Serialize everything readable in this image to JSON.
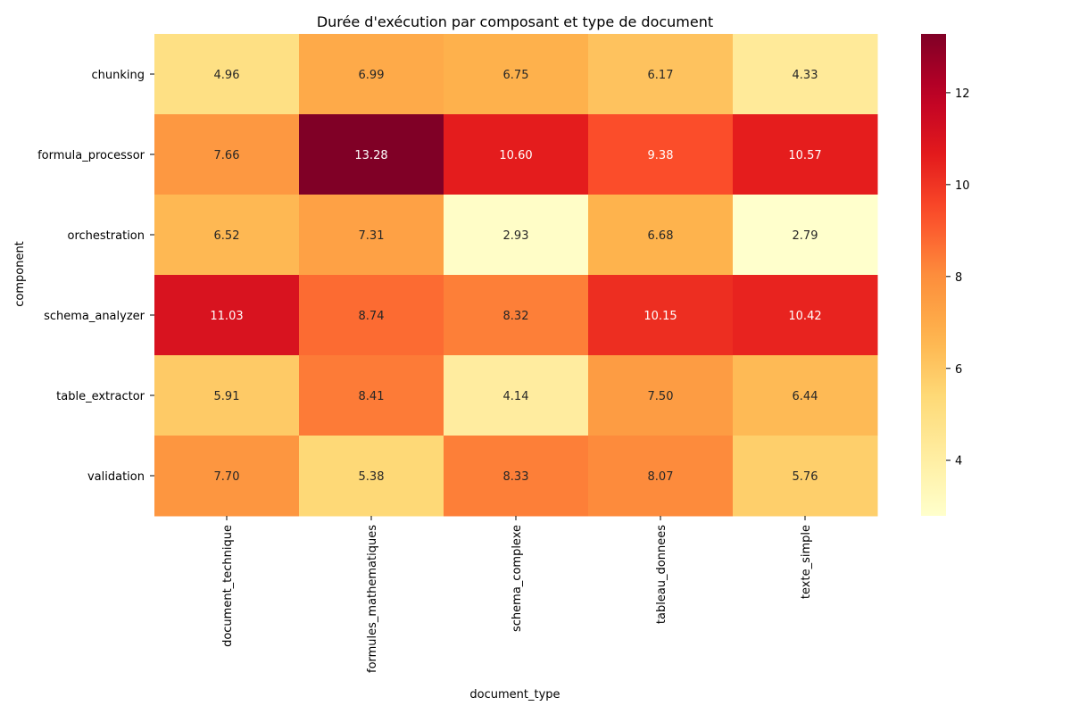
{
  "chart_data": {
    "type": "heatmap",
    "title": "Durée d'exécution par composant et type de document",
    "xlabel": "document_type",
    "ylabel": "component",
    "x_categories": [
      "document_technique",
      "formules_mathematiques",
      "schema_complexe",
      "tableau_donnees",
      "texte_simple"
    ],
    "y_categories": [
      "chunking",
      "formula_processor",
      "orchestration",
      "schema_analyzer",
      "table_extractor",
      "validation"
    ],
    "values": [
      [
        4.96,
        6.99,
        6.75,
        6.17,
        4.33
      ],
      [
        7.66,
        13.28,
        10.6,
        9.38,
        10.57
      ],
      [
        6.52,
        7.31,
        2.93,
        6.68,
        2.79
      ],
      [
        11.03,
        8.74,
        8.32,
        10.15,
        10.42
      ],
      [
        5.91,
        8.41,
        4.14,
        7.5,
        6.44
      ],
      [
        7.7,
        5.38,
        8.33,
        8.07,
        5.76
      ]
    ],
    "value_labels": [
      [
        "4.96",
        "6.99",
        "6.75",
        "6.17",
        "4.33"
      ],
      [
        "7.66",
        "13.28",
        "10.60",
        "9.38",
        "10.57"
      ],
      [
        "6.52",
        "7.31",
        "2.93",
        "6.68",
        "2.79"
      ],
      [
        "11.03",
        "8.74",
        "8.32",
        "10.15",
        "10.42"
      ],
      [
        "5.91",
        "8.41",
        "4.14",
        "7.50",
        "6.44"
      ],
      [
        "7.70",
        "5.38",
        "8.33",
        "8.07",
        "5.76"
      ]
    ],
    "colormap": "YlOrRd",
    "color_range": [
      2.79,
      13.28
    ],
    "colorbar_ticks": [
      4,
      6,
      8,
      10,
      12
    ],
    "colorbar_tick_labels": [
      "4",
      "6",
      "8",
      "10",
      "12"
    ],
    "grid": false,
    "legend": "colorbar-right"
  }
}
